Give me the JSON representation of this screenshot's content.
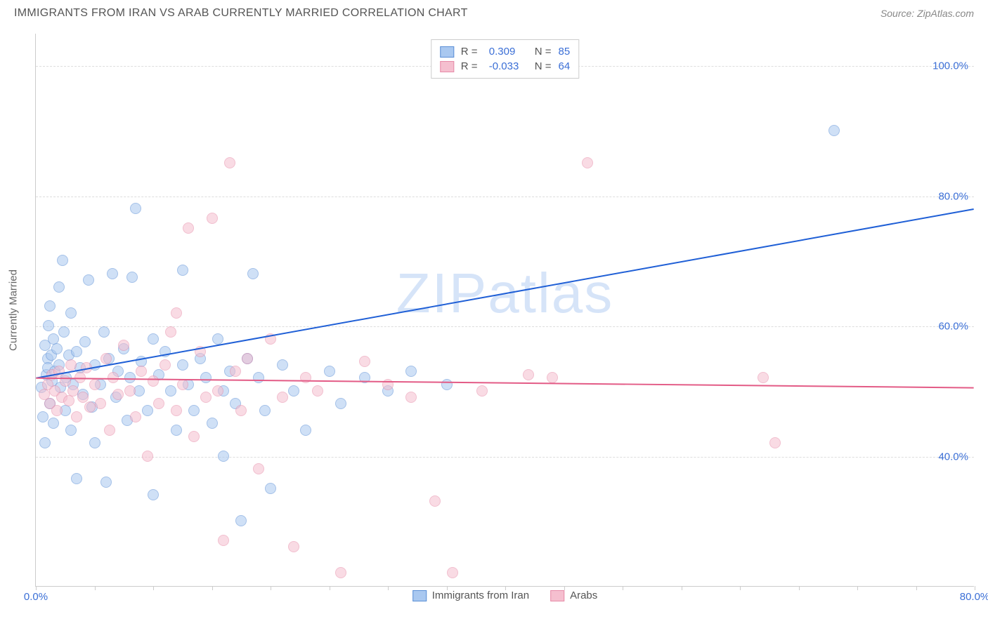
{
  "header": {
    "title": "IMMIGRANTS FROM IRAN VS ARAB CURRENTLY MARRIED CORRELATION CHART",
    "source_prefix": "Source: ",
    "source_name": "ZipAtlas.com"
  },
  "watermark": "ZIPatlas",
  "chart": {
    "type": "scatter",
    "background_color": "#ffffff",
    "grid_color": "#dddddd",
    "axis_color": "#cccccc",
    "tick_label_color": "#3b6fd6",
    "axis_title_color": "#666666",
    "y_axis_title": "Currently Married",
    "xlim": [
      0,
      80
    ],
    "ylim": [
      20,
      105
    ],
    "x_ticks": [
      0,
      5,
      10,
      15,
      20,
      25,
      30,
      35,
      40,
      45,
      50,
      55,
      60,
      65,
      70,
      75,
      80
    ],
    "x_tick_labels": {
      "0": "0.0%",
      "80": "80.0%"
    },
    "y_grid": [
      40,
      60,
      80,
      100
    ],
    "y_tick_labels": {
      "40": "40.0%",
      "60": "60.0%",
      "80": "80.0%",
      "100": "100.0%"
    },
    "marker_radius": 8,
    "marker_opacity": 0.55,
    "trend_line_width": 2,
    "series": [
      {
        "name": "Immigrants from Iran",
        "fill": "#a9c8f0",
        "stroke": "#5b8fd6",
        "trend_color": "#1f5fd6",
        "R": "0.309",
        "N": "85",
        "trend": {
          "x1": 0,
          "y1": 52,
          "x2": 80,
          "y2": 78
        },
        "points": [
          [
            0.5,
            50.5
          ],
          [
            0.6,
            46
          ],
          [
            0.8,
            42
          ],
          [
            0.8,
            57
          ],
          [
            0.9,
            52.5
          ],
          [
            1,
            55
          ],
          [
            1,
            53.5
          ],
          [
            1.1,
            60
          ],
          [
            1.2,
            48
          ],
          [
            1.2,
            63
          ],
          [
            1.3,
            55.5
          ],
          [
            1.4,
            51.5
          ],
          [
            1.5,
            58
          ],
          [
            1.5,
            45
          ],
          [
            1.6,
            53
          ],
          [
            1.8,
            56.5
          ],
          [
            2,
            66
          ],
          [
            2,
            54
          ],
          [
            2.1,
            50.5
          ],
          [
            2.3,
            70
          ],
          [
            2.4,
            59
          ],
          [
            2.5,
            47
          ],
          [
            2.6,
            52
          ],
          [
            2.8,
            55.5
          ],
          [
            3,
            44
          ],
          [
            3,
            62
          ],
          [
            3.2,
            51
          ],
          [
            3.5,
            56
          ],
          [
            3.5,
            36.5
          ],
          [
            3.8,
            53.5
          ],
          [
            4,
            49.5
          ],
          [
            4.2,
            57.5
          ],
          [
            4.5,
            67
          ],
          [
            4.8,
            47.5
          ],
          [
            5,
            54
          ],
          [
            5,
            42
          ],
          [
            5.5,
            51
          ],
          [
            5.8,
            59
          ],
          [
            6,
            36
          ],
          [
            6.2,
            55
          ],
          [
            6.5,
            68
          ],
          [
            6.8,
            49
          ],
          [
            7,
            53
          ],
          [
            7.5,
            56.5
          ],
          [
            7.8,
            45.5
          ],
          [
            8,
            52
          ],
          [
            8.2,
            67.5
          ],
          [
            8.5,
            78
          ],
          [
            8.8,
            50
          ],
          [
            9,
            54.5
          ],
          [
            9.5,
            47
          ],
          [
            10,
            34
          ],
          [
            10,
            58
          ],
          [
            10.5,
            52.5
          ],
          [
            11,
            56
          ],
          [
            11.5,
            50
          ],
          [
            12,
            44
          ],
          [
            12.5,
            54
          ],
          [
            12.5,
            68.5
          ],
          [
            13,
            51
          ],
          [
            13.5,
            47
          ],
          [
            14,
            55
          ],
          [
            14.5,
            52
          ],
          [
            15,
            45
          ],
          [
            15.5,
            58
          ],
          [
            16,
            50
          ],
          [
            16,
            40
          ],
          [
            16.5,
            53
          ],
          [
            17,
            48
          ],
          [
            17.5,
            30
          ],
          [
            18,
            55
          ],
          [
            18.5,
            68
          ],
          [
            19,
            52
          ],
          [
            19.5,
            47
          ],
          [
            20,
            35
          ],
          [
            21,
            54
          ],
          [
            22,
            50
          ],
          [
            23,
            44
          ],
          [
            25,
            53
          ],
          [
            26,
            48
          ],
          [
            28,
            52
          ],
          [
            30,
            50
          ],
          [
            32,
            53
          ],
          [
            35,
            51
          ],
          [
            68,
            90
          ]
        ]
      },
      {
        "name": "Arabs",
        "fill": "#f5bfcf",
        "stroke": "#e78ba8",
        "trend_color": "#e35b86",
        "R": "-0.033",
        "N": "64",
        "trend": {
          "x1": 0,
          "y1": 52,
          "x2": 80,
          "y2": 50.5
        },
        "points": [
          [
            0.7,
            49.5
          ],
          [
            1,
            51
          ],
          [
            1.2,
            48
          ],
          [
            1.4,
            52.5
          ],
          [
            1.6,
            50
          ],
          [
            1.8,
            47
          ],
          [
            2,
            53
          ],
          [
            2.2,
            49
          ],
          [
            2.5,
            51.5
          ],
          [
            2.8,
            48.5
          ],
          [
            3,
            54
          ],
          [
            3.2,
            50
          ],
          [
            3.5,
            46
          ],
          [
            3.8,
            52
          ],
          [
            4,
            49
          ],
          [
            4.3,
            53.5
          ],
          [
            4.6,
            47.5
          ],
          [
            5,
            51
          ],
          [
            5.5,
            48
          ],
          [
            6,
            55
          ],
          [
            6.3,
            44
          ],
          [
            6.6,
            52
          ],
          [
            7,
            49.5
          ],
          [
            7.5,
            57
          ],
          [
            8,
            50
          ],
          [
            8.5,
            46
          ],
          [
            9,
            53
          ],
          [
            9.5,
            40
          ],
          [
            10,
            51.5
          ],
          [
            10.5,
            48
          ],
          [
            11,
            54
          ],
          [
            11.5,
            59
          ],
          [
            12,
            62
          ],
          [
            12,
            47
          ],
          [
            12.5,
            51
          ],
          [
            13,
            75
          ],
          [
            13.5,
            43
          ],
          [
            14,
            56
          ],
          [
            14.5,
            49
          ],
          [
            15,
            76.5
          ],
          [
            15.5,
            50
          ],
          [
            16,
            27
          ],
          [
            16.5,
            85
          ],
          [
            17,
            53
          ],
          [
            17.5,
            47
          ],
          [
            18,
            55
          ],
          [
            19,
            38
          ],
          [
            20,
            58
          ],
          [
            21,
            49
          ],
          [
            22,
            26
          ],
          [
            23,
            52
          ],
          [
            24,
            50
          ],
          [
            26,
            22
          ],
          [
            28,
            54.5
          ],
          [
            30,
            51
          ],
          [
            32,
            49
          ],
          [
            34,
            33
          ],
          [
            35.5,
            22
          ],
          [
            38,
            50
          ],
          [
            42,
            52.5
          ],
          [
            44,
            52
          ],
          [
            47,
            85
          ],
          [
            62,
            52
          ],
          [
            63,
            42
          ]
        ]
      }
    ]
  },
  "legend_top_labels": {
    "R": "R =",
    "N": "N ="
  },
  "legend_bottom": [
    {
      "label": "Immigrants from Iran",
      "fill": "#a9c8f0",
      "stroke": "#5b8fd6"
    },
    {
      "label": "Arabs",
      "fill": "#f5bfcf",
      "stroke": "#e78ba8"
    }
  ]
}
